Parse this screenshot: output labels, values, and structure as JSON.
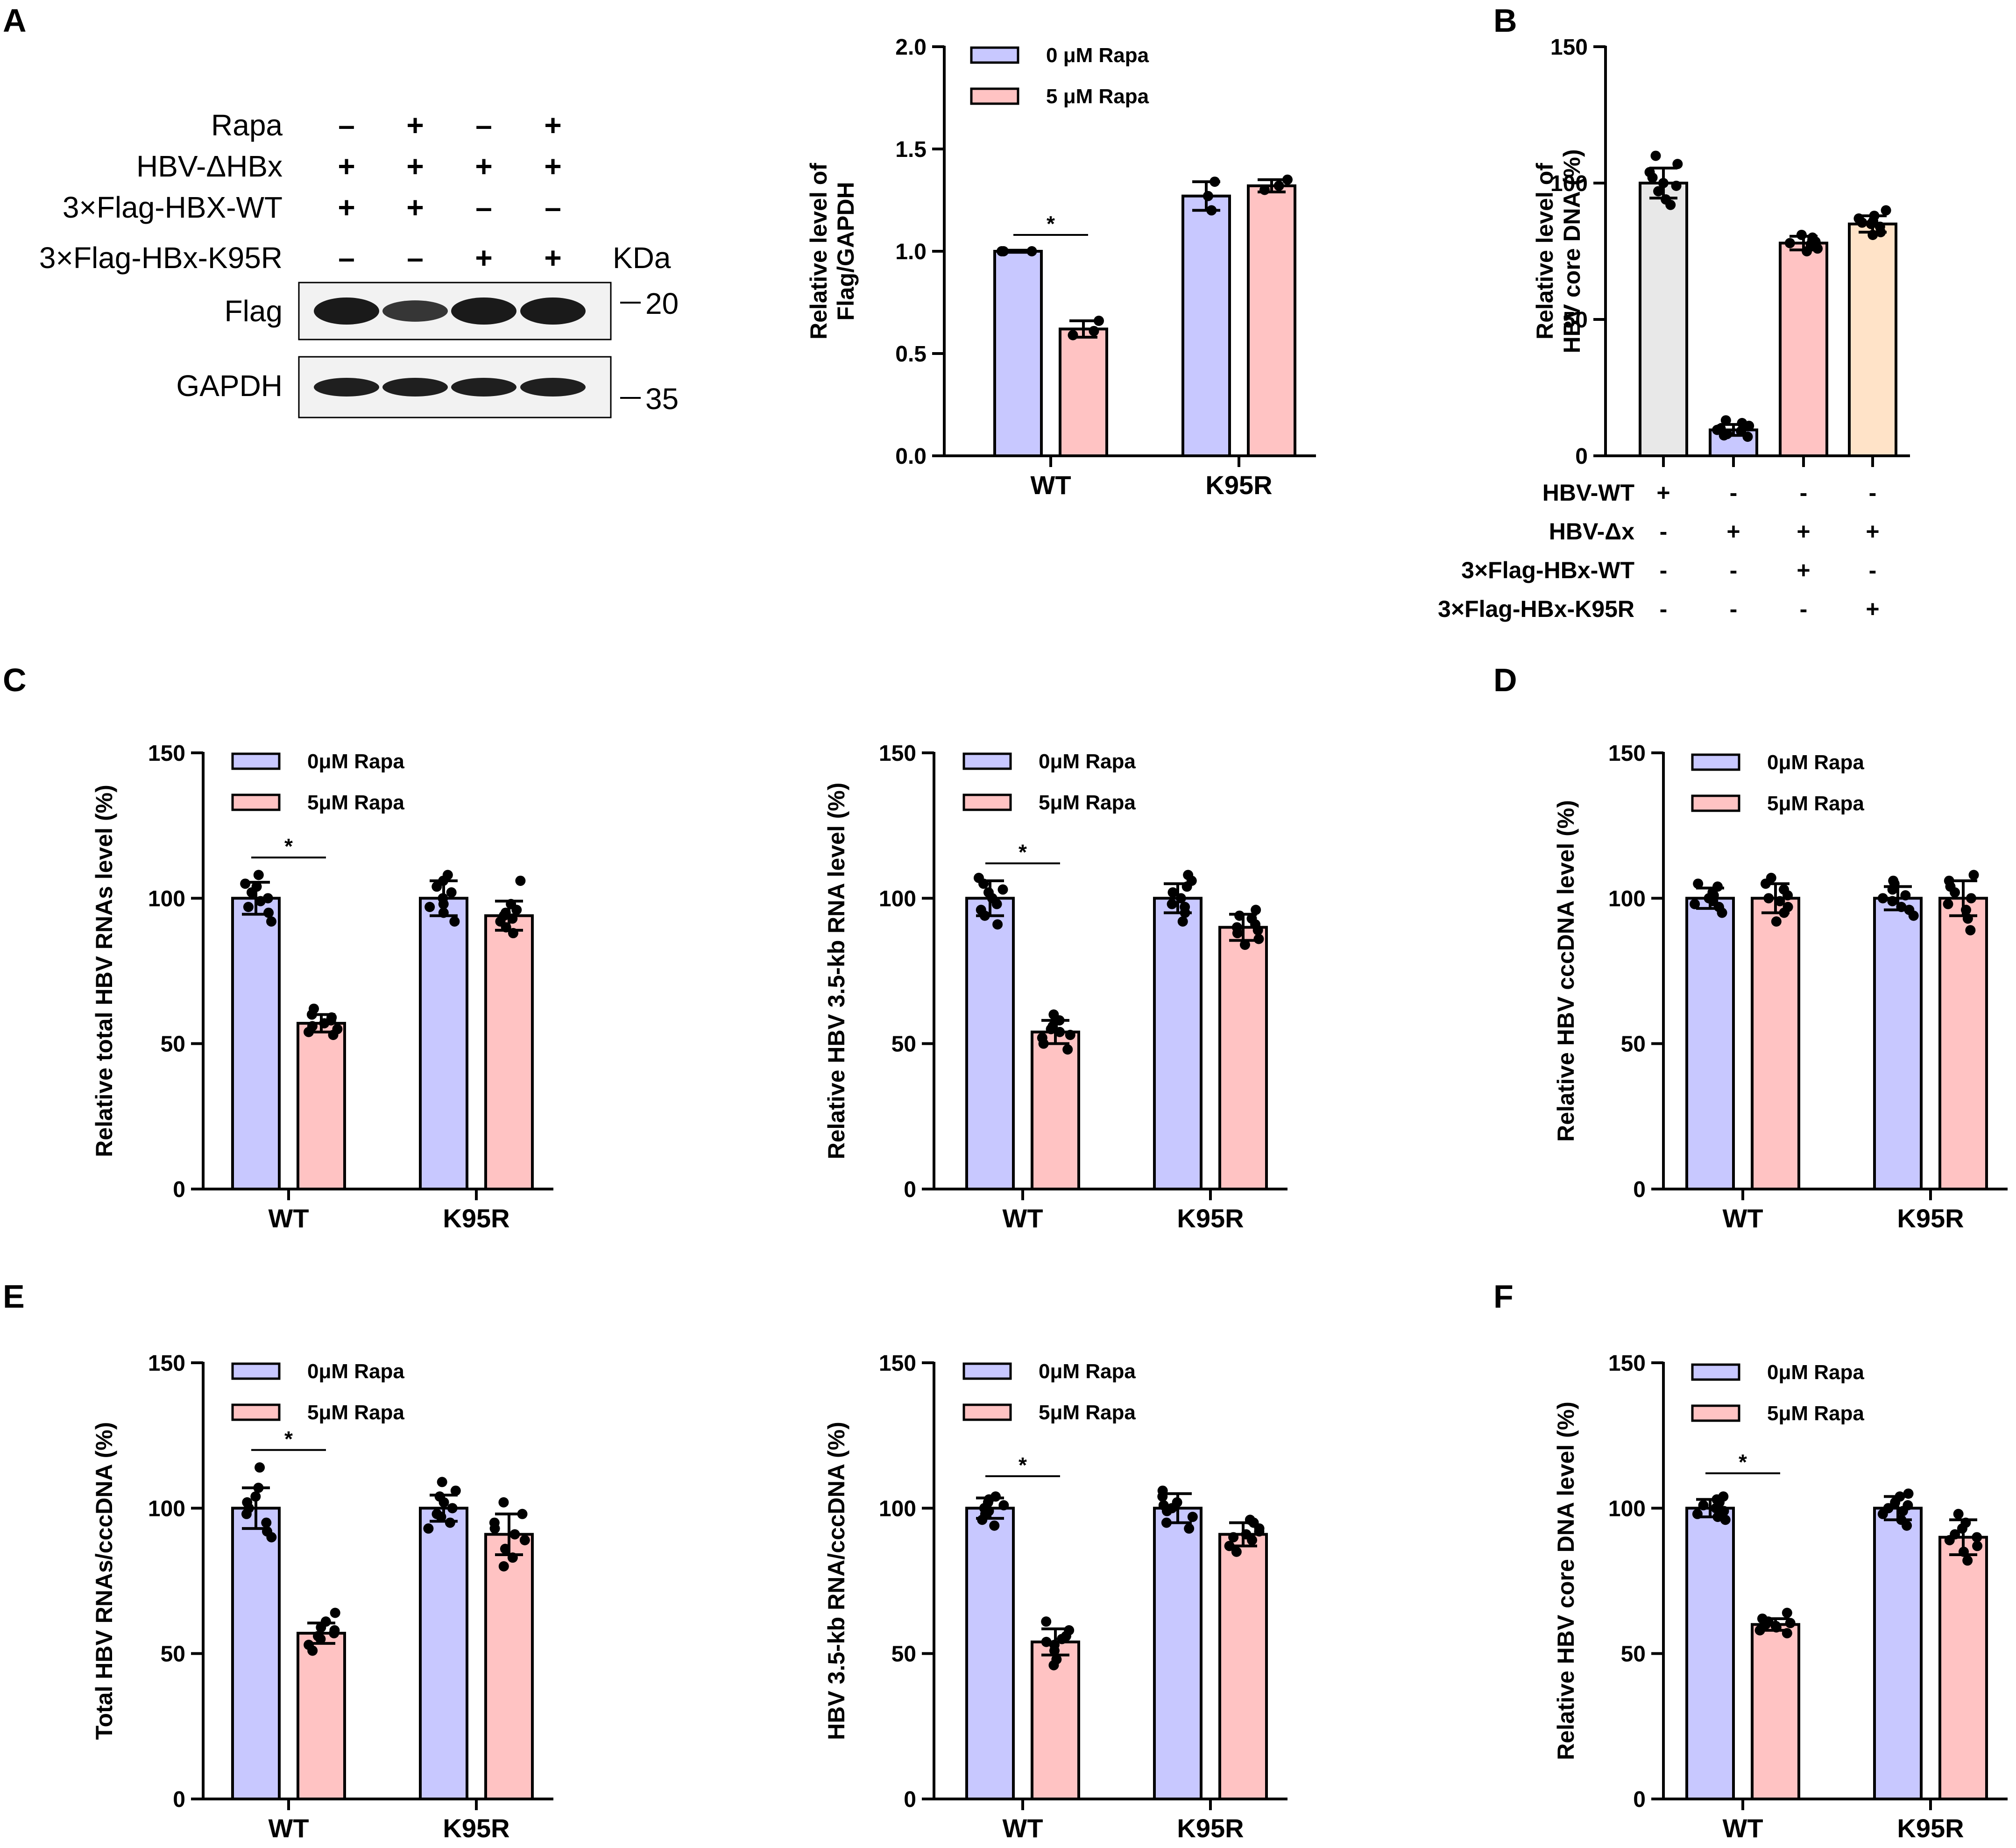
{
  "panel_letters": [
    "A",
    "B",
    "C",
    "D",
    "E",
    "F"
  ],
  "colors": {
    "rapa0": "#c8c8ff",
    "rapa5": "#ffc3c3",
    "hbv_wt": "#e8e8e8",
    "hbv_dx": "#c8c8ff",
    "flag_wt": "#ffc3c3",
    "flag_k95r": "#ffe3c8",
    "band": "#1a1a1a",
    "axis": "#000000"
  },
  "blot": {
    "row_labels": [
      "Rapa",
      "HBV-ΔHBx",
      "3×Flag-HBX-WT",
      "3×Flag-HBx-K95R"
    ],
    "signs": [
      [
        "–",
        "+",
        "–",
        "+"
      ],
      [
        "+",
        "+",
        "+",
        "+"
      ],
      [
        "+",
        "+",
        "–",
        "–"
      ],
      [
        "–",
        "–",
        "+",
        "+"
      ]
    ],
    "kda_label": "KDa",
    "bands": [
      {
        "label": "Flag",
        "marker": "20",
        "intensity": [
          1.0,
          0.72,
          1.0,
          1.0
        ]
      },
      {
        "label": "GAPDH",
        "marker": "35",
        "intensity": [
          0.95,
          0.95,
          0.95,
          0.95
        ]
      }
    ]
  },
  "chart_data": [
    {
      "id": "A-quant",
      "panel": "A",
      "type": "bar",
      "ylabel": "Relative level of Flag/GAPDH",
      "ylim": [
        0,
        2.0
      ],
      "yticks": [
        "0.0",
        "0.5",
        "1.0",
        "1.5",
        "2.0"
      ],
      "ytick_values": [
        0,
        0.5,
        1.0,
        1.5,
        2.0
      ],
      "categories": [
        "WT",
        "K95R"
      ],
      "legend": [
        "0 μM Rapa",
        "5 μM Rapa"
      ],
      "series": [
        {
          "name": "0 μM Rapa",
          "color": "#c8c8ff",
          "values": [
            1.0,
            1.27
          ],
          "errors": [
            0.005,
            0.07
          ],
          "points": [
            [
              1.0,
              1.0,
              1.0
            ],
            [
              1.34,
              1.27,
              1.2
            ]
          ]
        },
        {
          "name": "5 μM Rapa",
          "color": "#ffc3c3",
          "values": [
            0.62,
            1.32
          ],
          "errors": [
            0.04,
            0.03
          ],
          "points": [
            [
              0.66,
              0.61,
              0.59
            ],
            [
              1.35,
              1.32,
              1.3
            ]
          ]
        }
      ],
      "significance": [
        {
          "label": "*",
          "category": 0,
          "y": 1.08
        }
      ]
    },
    {
      "id": "B",
      "panel": "B",
      "type": "bar",
      "ylabel": "Relative level of HBV core DNA (%)",
      "ylim": [
        0,
        150
      ],
      "yticks": [
        "0",
        "50",
        "100",
        "150"
      ],
      "ytick_values": [
        0,
        50,
        100,
        150
      ],
      "categories": [
        "HBV-WT",
        "HBV-Δx",
        "3×Flag-HBx-WT",
        "3×Flag-HBx-K95R"
      ],
      "bars": [
        {
          "color": "#e8e8e8",
          "value": 100,
          "error": 5.5,
          "points": [
            110,
            107,
            104,
            102,
            100,
            99,
            97,
            94,
            92
          ]
        },
        {
          "color": "#c8c8ff",
          "value": 9.5,
          "error": 2,
          "points": [
            13,
            12,
            11,
            10,
            9.5,
            9,
            8,
            7.5,
            7
          ]
        },
        {
          "color": "#ffc3c3",
          "value": 78,
          "error": 2.5,
          "points": [
            81,
            80,
            79,
            78.5,
            78,
            77.5,
            77,
            76,
            75
          ]
        },
        {
          "color": "#ffe3c8",
          "value": 85,
          "error": 3,
          "points": [
            90,
            88,
            87,
            86,
            85.5,
            85,
            84,
            82,
            81
          ]
        }
      ],
      "conditions": [
        {
          "label": "HBV-WT",
          "signs": [
            "+",
            "-",
            "-",
            "-"
          ]
        },
        {
          "label": "HBV-Δx",
          "signs": [
            "-",
            "+",
            "+",
            "+"
          ]
        },
        {
          "label": "3×Flag-HBx-WT",
          "signs": [
            "-",
            "-",
            "+",
            "-"
          ]
        },
        {
          "label": "3×Flag-HBx-K95R",
          "signs": [
            "-",
            "-",
            "-",
            "+"
          ]
        }
      ]
    },
    {
      "id": "C1",
      "panel": "C",
      "type": "bar",
      "ylabel": "Relative total HBV RNAs level (%)",
      "ylim": [
        0,
        150
      ],
      "yticks": [
        "0",
        "50",
        "100",
        "150"
      ],
      "ytick_values": [
        0,
        50,
        100,
        150
      ],
      "categories": [
        "WT",
        "K95R"
      ],
      "legend": [
        "0μM Rapa",
        "5μM Rapa"
      ],
      "series": [
        {
          "name": "0μM Rapa",
          "color": "#c8c8ff",
          "values": [
            100,
            100
          ],
          "errors": [
            5.5,
            6
          ],
          "points": [
            [
              108,
              105,
              104,
              102,
              100,
              99,
              97,
              95,
              92
            ],
            [
              108,
              106,
              104,
              102,
              100,
              98,
              97,
              95,
              92
            ]
          ]
        },
        {
          "name": "5μM Rapa",
          "color": "#ffc3c3",
          "values": [
            57,
            94
          ],
          "errors": [
            3,
            5
          ],
          "points": [
            [
              62,
              60,
              59,
              58,
              57,
              56,
              55,
              54,
              53
            ],
            [
              106,
              98,
              96,
              95,
              94,
              93,
              92,
              90,
              88
            ]
          ]
        }
      ],
      "significance": [
        {
          "label": "*",
          "category": 0,
          "y": 114
        }
      ]
    },
    {
      "id": "C2",
      "panel": "C",
      "type": "bar",
      "ylabel": "Relative HBV 3.5-kb RNA level (%)",
      "ylim": [
        0,
        150
      ],
      "yticks": [
        "0",
        "50",
        "100",
        "150"
      ],
      "ytick_values": [
        0,
        50,
        100,
        150
      ],
      "categories": [
        "WT",
        "K95R"
      ],
      "legend": [
        "0μM Rapa",
        "5μM Rapa"
      ],
      "series": [
        {
          "name": "0μM Rapa",
          "color": "#c8c8ff",
          "values": [
            100,
            100
          ],
          "errors": [
            6,
            5
          ],
          "points": [
            [
              107,
              105,
              103,
              102,
              100,
              98,
              96,
              94,
              91
            ],
            [
              108,
              106,
              104,
              102,
              100,
              98,
              97,
              95,
              92
            ]
          ]
        },
        {
          "name": "5μM Rapa",
          "color": "#ffc3c3",
          "values": [
            54,
            90
          ],
          "errors": [
            4,
            4.5
          ],
          "points": [
            [
              60,
              58,
              56,
              55,
              54,
              53,
              52,
              50,
              48
            ],
            [
              96,
              94,
              93,
              91,
              90,
              89,
              88,
              86,
              84
            ]
          ]
        }
      ],
      "significance": [
        {
          "label": "*",
          "category": 0,
          "y": 112
        }
      ]
    },
    {
      "id": "D",
      "panel": "D",
      "type": "bar",
      "ylabel": "Relative HBV cccDNA level (%)",
      "ylim": [
        0,
        150
      ],
      "yticks": [
        "0",
        "50",
        "100",
        "150"
      ],
      "ytick_values": [
        0,
        50,
        100,
        150
      ],
      "categories": [
        "WT",
        "K95R"
      ],
      "legend": [
        "0μM Rapa",
        "5μM Rapa"
      ],
      "series": [
        {
          "name": "0μM Rapa",
          "color": "#c8c8ff",
          "values": [
            100,
            100
          ],
          "errors": [
            3.5,
            4
          ],
          "points": [
            [
              105,
              104,
              102,
              101,
              100,
              99,
              98,
              97,
              95
            ],
            [
              106,
              105,
              103,
              101,
              100,
              99,
              97,
              96,
              94
            ]
          ]
        },
        {
          "name": "5μM Rapa",
          "color": "#ffc3c3",
          "values": [
            100,
            100
          ],
          "errors": [
            5,
            6
          ],
          "points": [
            [
              107,
              105,
              103,
              101,
              100,
              99,
              97,
              95,
              92
            ],
            [
              108,
              106,
              104,
              102,
              100,
              98,
              96,
              93,
              89
            ]
          ]
        }
      ]
    },
    {
      "id": "E1",
      "panel": "E",
      "type": "bar",
      "ylabel": "Total HBV RNAs/cccDNA (%)",
      "ylim": [
        0,
        150
      ],
      "yticks": [
        "0",
        "50",
        "100",
        "150"
      ],
      "ytick_values": [
        0,
        50,
        100,
        150
      ],
      "categories": [
        "WT",
        "K95R"
      ],
      "legend": [
        "0μM Rapa",
        "5μM Rapa"
      ],
      "series": [
        {
          "name": "0μM Rapa",
          "color": "#c8c8ff",
          "values": [
            100,
            100
          ],
          "errors": [
            7,
            4.5
          ],
          "points": [
            [
              114,
              107,
              104,
              102,
              100,
              98,
              95,
              92,
              90
            ],
            [
              109,
              106,
              104,
              102,
              100,
              98,
              97,
              95,
              93
            ]
          ]
        },
        {
          "name": "5μM Rapa",
          "color": "#ffc3c3",
          "values": [
            57,
            91
          ],
          "errors": [
            3.5,
            7
          ],
          "points": [
            [
              64,
              61,
              59,
              58,
              57,
              56,
              55,
              53,
              51
            ],
            [
              102,
              98,
              95,
              93,
              91,
              89,
              86,
              83,
              80
            ]
          ]
        }
      ],
      "significance": [
        {
          "label": "*",
          "category": 0,
          "y": 120
        }
      ]
    },
    {
      "id": "E2",
      "panel": "E",
      "type": "bar",
      "ylabel": "HBV 3.5-kb RNA/cccDNA (%)",
      "ylim": [
        0,
        150
      ],
      "yticks": [
        "0",
        "50",
        "100",
        "150"
      ],
      "ytick_values": [
        0,
        50,
        100,
        150
      ],
      "categories": [
        "WT",
        "K95R"
      ],
      "legend": [
        "0μM Rapa",
        "5μM Rapa"
      ],
      "series": [
        {
          "name": "0μM Rapa",
          "color": "#c8c8ff",
          "values": [
            100,
            100
          ],
          "errors": [
            3.5,
            5
          ],
          "points": [
            [
              104,
              103,
              102,
              101,
              100,
              99,
              98,
              96,
              94
            ],
            [
              106,
              104,
              102,
              101,
              100,
              99,
              97,
              95,
              93
            ]
          ]
        },
        {
          "name": "5μM Rapa",
          "color": "#ffc3c3",
          "values": [
            54,
            91
          ],
          "errors": [
            4.5,
            4
          ],
          "points": [
            [
              61,
              58,
              56,
              55,
              54,
              53,
              51,
              48,
              46
            ],
            [
              96,
              95,
              93,
              92,
              91,
              90,
              89,
              87,
              85
            ]
          ]
        }
      ],
      "significance": [
        {
          "label": "*",
          "category": 0,
          "y": 111
        }
      ]
    },
    {
      "id": "F",
      "panel": "F",
      "type": "bar",
      "ylabel": "Relative HBV core DNA level (%)",
      "ylim": [
        0,
        150
      ],
      "yticks": [
        "0",
        "50",
        "100",
        "150"
      ],
      "ytick_values": [
        0,
        50,
        100,
        150
      ],
      "categories": [
        "WT",
        "K95R"
      ],
      "legend": [
        "0μM Rapa",
        "5μM Rapa"
      ],
      "series": [
        {
          "name": "0μM Rapa",
          "color": "#c8c8ff",
          "values": [
            100,
            100
          ],
          "errors": [
            3,
            4
          ],
          "points": [
            [
              104,
              103,
              102,
              101,
              100,
              99,
              98,
              97,
              96
            ],
            [
              105,
              104,
              102,
              101,
              100,
              99,
              98,
              96,
              94
            ]
          ]
        },
        {
          "name": "5μM Rapa",
          "color": "#ffc3c3",
          "values": [
            60,
            90
          ],
          "errors": [
            2,
            6
          ],
          "points": [
            [
              64,
              62,
              61,
              60.5,
              60,
              59.5,
              59,
              58,
              57
            ],
            [
              98,
              95,
              93,
              91,
              90,
              89,
              87,
              85,
              82
            ]
          ]
        }
      ],
      "significance": [
        {
          "label": "*",
          "category": 0,
          "y": 112
        }
      ]
    }
  ]
}
